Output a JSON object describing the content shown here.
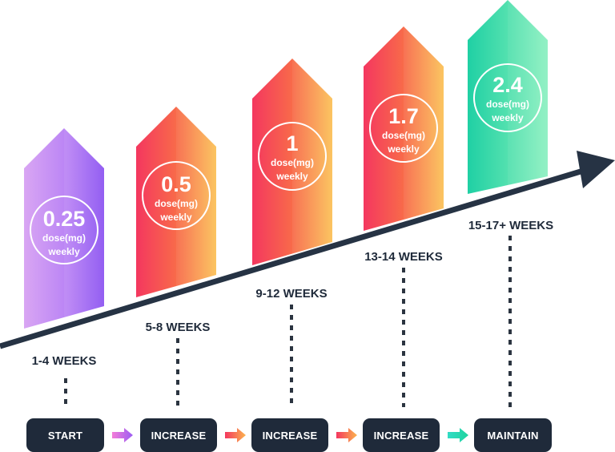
{
  "doses": [
    {
      "value": "0.25",
      "unit": "dose(mg)",
      "freq": "weekly",
      "period": "1-4 WEEKS",
      "step": "START"
    },
    {
      "value": "0.5",
      "unit": "dose(mg)",
      "freq": "weekly",
      "period": "5-8 WEEKS",
      "step": "INCREASE"
    },
    {
      "value": "1",
      "unit": "dose(mg)",
      "freq": "weekly",
      "period": "9-12 WEEKS",
      "step": "INCREASE"
    },
    {
      "value": "1.7",
      "unit": "dose(mg)",
      "freq": "weekly",
      "period": "13-14 WEEKS",
      "step": "INCREASE"
    },
    {
      "value": "2.4",
      "unit": "dose(mg)",
      "freq": "weekly",
      "period": "15-17+ WEEKS",
      "step": "MAINTAIN"
    }
  ],
  "colors": {
    "trend_line": "#263344",
    "step_button": "#1f2a3a",
    "label_text": "#1f2a3a"
  }
}
